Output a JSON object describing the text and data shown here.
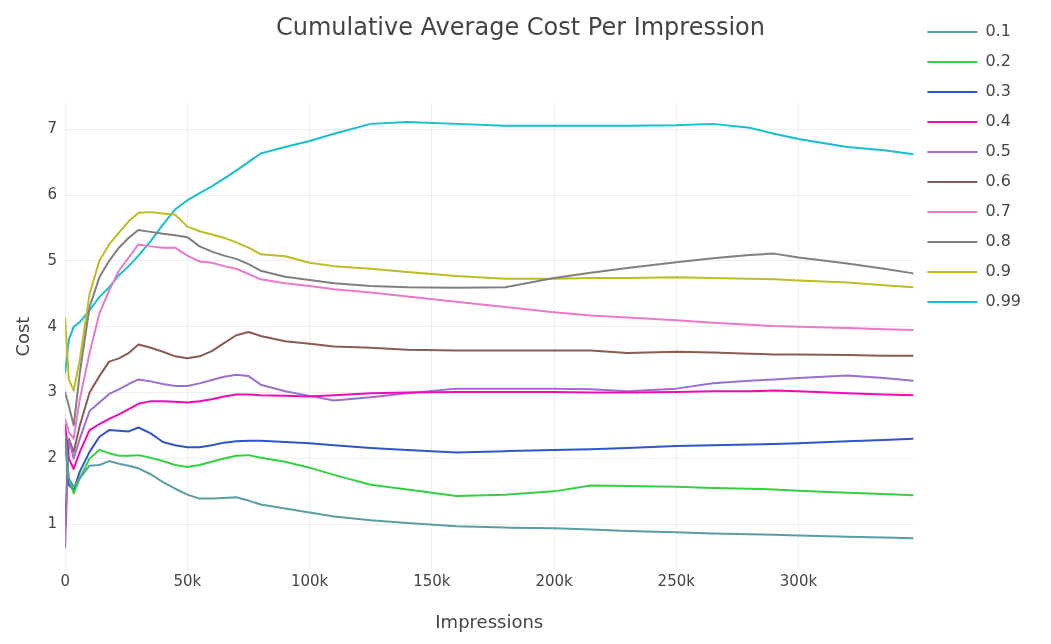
{
  "chart_data": {
    "type": "line",
    "title": "Cumulative Average Cost Per Impression",
    "xlabel": "Impressions",
    "ylabel": "Cost",
    "x": [
      0,
      1500,
      3500,
      6000,
      10000,
      14000,
      18000,
      22000,
      26000,
      30000,
      35000,
      40000,
      45000,
      50000,
      55000,
      60000,
      65000,
      70000,
      75000,
      80000,
      90000,
      100000,
      110000,
      125000,
      140000,
      160000,
      180000,
      200000,
      215000,
      230000,
      250000,
      265000,
      280000,
      290000,
      300000,
      320000,
      335000,
      347000
    ],
    "xlim": [
      0,
      347000
    ],
    "xticks": [
      0,
      {
        "value": 50000,
        "label": "50k"
      },
      {
        "value": 100000,
        "label": "100k"
      },
      {
        "value": 150000,
        "label": "150k"
      },
      {
        "value": 200000,
        "label": "200k"
      },
      {
        "value": 250000,
        "label": "250k"
      },
      {
        "value": 300000,
        "label": "300k"
      }
    ],
    "ylim": [
      0.3,
      7.4
    ],
    "yticks": [
      1,
      2,
      3,
      4,
      5,
      6,
      7
    ],
    "grid": true,
    "legend": "top right",
    "marker": "none",
    "line_style": "solid",
    "series": [
      {
        "name": "0.1",
        "color": "#5a9ea5",
        "values": [
          2.2,
          1.7,
          1.57,
          1.7,
          1.89,
          1.9,
          1.96,
          1.92,
          1.89,
          1.85,
          1.76,
          1.64,
          1.54,
          1.45,
          1.39,
          1.39,
          1.4,
          1.41,
          1.36,
          1.3,
          1.24,
          1.18,
          1.12,
          1.06,
          1.02,
          0.97,
          0.95,
          0.94,
          0.92,
          0.9,
          0.88,
          0.86,
          0.85,
          0.84,
          0.83,
          0.81,
          0.8,
          0.79
        ]
      },
      {
        "name": "0.2",
        "color": "#33d13f",
        "values": [
          2.3,
          1.7,
          1.47,
          1.7,
          2.0,
          2.13,
          2.08,
          2.04,
          2.04,
          2.05,
          2.01,
          1.96,
          1.9,
          1.87,
          1.9,
          1.95,
          2.0,
          2.04,
          2.05,
          2.01,
          1.95,
          1.86,
          1.75,
          1.6,
          1.53,
          1.43,
          1.45,
          1.5,
          1.59,
          1.58,
          1.57,
          1.55,
          1.54,
          1.53,
          1.51,
          1.48,
          1.46,
          1.44
        ]
      },
      {
        "name": "0.3",
        "color": "#2f55c7",
        "values": [
          2.3,
          1.6,
          1.52,
          1.8,
          2.1,
          2.33,
          2.43,
          2.42,
          2.41,
          2.47,
          2.38,
          2.25,
          2.2,
          2.17,
          2.17,
          2.2,
          2.24,
          2.26,
          2.27,
          2.27,
          2.25,
          2.23,
          2.2,
          2.16,
          2.13,
          2.09,
          2.11,
          2.13,
          2.14,
          2.16,
          2.19,
          2.2,
          2.21,
          2.22,
          2.23,
          2.26,
          2.28,
          2.3
        ]
      },
      {
        "name": "0.4",
        "color": "#f00cb4",
        "values": [
          2.5,
          2.0,
          1.84,
          2.1,
          2.43,
          2.52,
          2.6,
          2.67,
          2.75,
          2.83,
          2.87,
          2.87,
          2.86,
          2.85,
          2.87,
          2.9,
          2.94,
          2.97,
          2.97,
          2.96,
          2.95,
          2.94,
          2.96,
          2.99,
          3.0,
          3.01,
          3.01,
          3.01,
          3.0,
          3.0,
          3.01,
          3.02,
          3.02,
          3.03,
          3.02,
          2.99,
          2.97,
          2.96
        ]
      },
      {
        "name": "0.5",
        "color": "#9b6fd0",
        "values": [
          0.65,
          2.3,
          2.0,
          2.3,
          2.72,
          2.85,
          2.98,
          3.05,
          3.13,
          3.2,
          3.17,
          3.13,
          3.1,
          3.1,
          3.14,
          3.19,
          3.24,
          3.27,
          3.25,
          3.12,
          3.02,
          2.95,
          2.88,
          2.93,
          2.99,
          3.06,
          3.06,
          3.06,
          3.05,
          3.02,
          3.06,
          3.14,
          3.18,
          3.2,
          3.22,
          3.26,
          3.22,
          3.18
        ]
      },
      {
        "name": "0.6",
        "color": "#8b5a50",
        "values": [
          1.0,
          2.3,
          2.1,
          2.5,
          3.0,
          3.25,
          3.47,
          3.52,
          3.6,
          3.73,
          3.68,
          3.62,
          3.55,
          3.52,
          3.55,
          3.63,
          3.75,
          3.87,
          3.92,
          3.86,
          3.78,
          3.74,
          3.7,
          3.68,
          3.65,
          3.64,
          3.64,
          3.64,
          3.64,
          3.6,
          3.62,
          3.61,
          3.59,
          3.58,
          3.58,
          3.57,
          3.56,
          3.56
        ]
      },
      {
        "name": "0.7",
        "color": "#e87ac8",
        "values": [
          2.6,
          2.4,
          2.3,
          2.9,
          3.6,
          4.2,
          4.55,
          4.85,
          5.05,
          5.25,
          5.22,
          5.2,
          5.2,
          5.08,
          4.99,
          4.97,
          4.92,
          4.88,
          4.8,
          4.72,
          4.66,
          4.62,
          4.57,
          4.52,
          4.46,
          4.38,
          4.3,
          4.22,
          4.17,
          4.14,
          4.1,
          4.06,
          4.03,
          4.01,
          4.0,
          3.98,
          3.96,
          3.95
        ]
      },
      {
        "name": "0.8",
        "color": "#808080",
        "values": [
          3.0,
          2.8,
          2.5,
          3.3,
          4.3,
          4.75,
          5.0,
          5.2,
          5.35,
          5.47,
          5.44,
          5.41,
          5.39,
          5.36,
          5.22,
          5.14,
          5.08,
          5.03,
          4.95,
          4.85,
          4.76,
          4.71,
          4.66,
          4.62,
          4.6,
          4.59,
          4.6,
          4.74,
          4.82,
          4.89,
          4.98,
          5.04,
          5.09,
          5.11,
          5.05,
          4.96,
          4.88,
          4.81
        ]
      },
      {
        "name": "0.9",
        "color": "#bcbd22",
        "values": [
          4.13,
          3.2,
          3.03,
          3.5,
          4.5,
          5.0,
          5.25,
          5.43,
          5.6,
          5.73,
          5.74,
          5.72,
          5.7,
          5.52,
          5.45,
          5.4,
          5.35,
          5.28,
          5.2,
          5.1,
          5.07,
          4.97,
          4.92,
          4.88,
          4.83,
          4.77,
          4.73,
          4.73,
          4.74,
          4.74,
          4.75,
          4.74,
          4.73,
          4.72,
          4.7,
          4.67,
          4.63,
          4.6
        ]
      },
      {
        "name": "0.99",
        "color": "#17becf",
        "values": [
          3.3,
          3.8,
          4.0,
          4.07,
          4.25,
          4.45,
          4.6,
          4.78,
          4.92,
          5.08,
          5.3,
          5.55,
          5.78,
          5.92,
          6.03,
          6.13,
          6.25,
          6.37,
          6.5,
          6.63,
          6.73,
          6.82,
          6.93,
          7.08,
          7.11,
          7.08,
          7.05,
          7.05,
          7.05,
          7.05,
          7.06,
          7.08,
          7.02,
          6.93,
          6.85,
          6.73,
          6.68,
          6.62
        ]
      }
    ]
  }
}
